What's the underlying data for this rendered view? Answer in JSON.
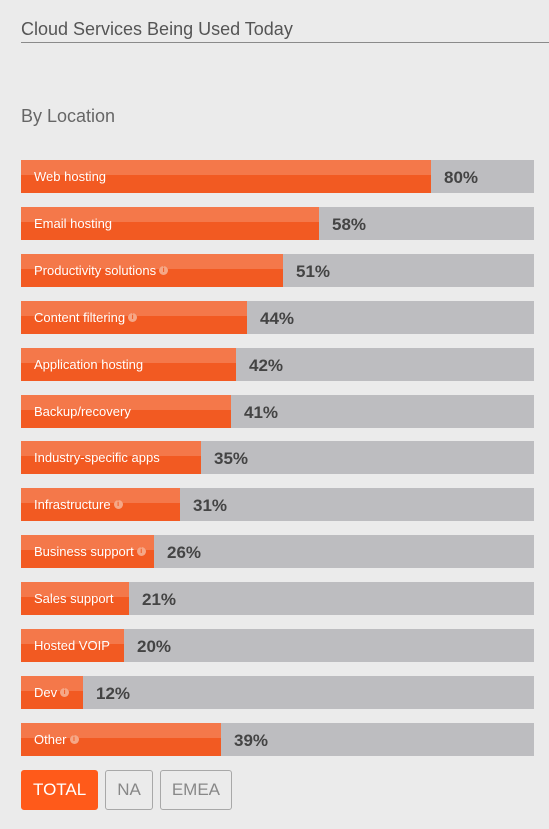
{
  "header": {
    "title": "Cloud Services Being Used Today",
    "subtitle": "By Location"
  },
  "colors": {
    "bar_fill": "#f25a22",
    "bar_fill_highlight": "#f4784a",
    "bar_track": "#bdbdc0",
    "active_button": "#ff5a1a",
    "background": "#ebebeb"
  },
  "chart_data": {
    "type": "bar",
    "orientation": "horizontal",
    "title": "Cloud Services Being Used Today",
    "subtitle": "By Location",
    "xlim": [
      0,
      100
    ],
    "grid": false,
    "categories": [
      "Web hosting",
      "Email hosting",
      "Productivity solutions",
      "Content filtering",
      "Application hosting",
      "Backup/recovery",
      "Industry-specific apps",
      "Infrastructure",
      "Business support",
      "Sales support",
      "Hosted VOIP",
      "Dev",
      "Other"
    ],
    "values": [
      80,
      58,
      51,
      44,
      42,
      41,
      35,
      31,
      26,
      21,
      20,
      12,
      39
    ],
    "value_labels": [
      "80%",
      "58%",
      "51%",
      "44%",
      "42%",
      "41%",
      "35%",
      "31%",
      "26%",
      "21%",
      "20%",
      "12%",
      "39%"
    ],
    "info_icon": [
      false,
      false,
      true,
      true,
      false,
      false,
      false,
      true,
      true,
      false,
      false,
      true,
      true
    ]
  },
  "filters": {
    "buttons": [
      "TOTAL",
      "NA",
      "EMEA"
    ],
    "selected": "TOTAL"
  }
}
